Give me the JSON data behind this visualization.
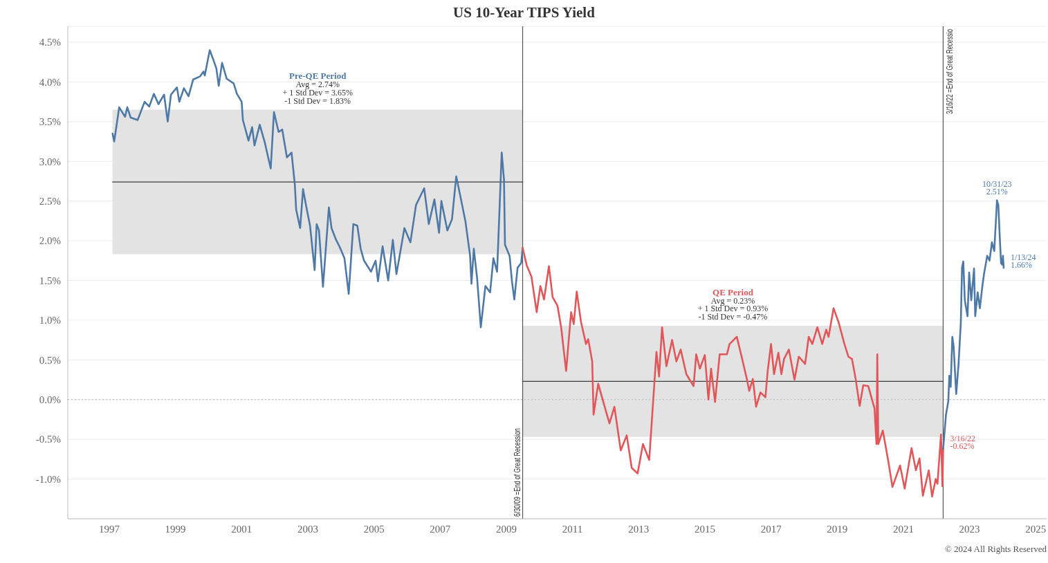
{
  "chart_data": {
    "type": "line",
    "title": "US 10-Year TIPS Yield",
    "xlim": [
      "1995-10-01",
      "2025-05-01"
    ],
    "xticks": [
      "1997",
      "1999",
      "2001",
      "2003",
      "2005",
      "2007",
      "2009",
      "2011",
      "2013",
      "2015",
      "2017",
      "2019",
      "2021",
      "2023",
      "2025"
    ],
    "ylim": [
      -1.5,
      4.7
    ],
    "yticks": [
      {
        "value": -1.0,
        "label": "-1.0%"
      },
      {
        "value": -0.5,
        "label": "-0.5%"
      },
      {
        "value": 0,
        "label": "0.0%"
      },
      {
        "value": 0.5,
        "label": "0.5%"
      },
      {
        "value": 1.0,
        "label": "1.0%"
      },
      {
        "value": 1.5,
        "label": "1.5%"
      },
      {
        "value": 2.0,
        "label": "2.0%"
      },
      {
        "value": 2.5,
        "label": "2.5%"
      },
      {
        "value": 3.0,
        "label": "3.0%"
      },
      {
        "value": 3.5,
        "label": "3.5%"
      },
      {
        "value": 4.0,
        "label": "4.0%"
      },
      {
        "value": 4.5,
        "label": "4.5%"
      }
    ],
    "grid": "y",
    "marker": "none",
    "series": [
      {
        "color": "#3d3d3d",
        "x": [
          "1997-02-06",
          "2009-06-30"
        ],
        "values": [
          2.74,
          2.74
        ],
        "lower": [
          1.83,
          1.83
        ],
        "upper": [
          3.65,
          3.65
        ]
      },
      {
        "color": "#3d3d3d",
        "x": [
          "2009-06-30",
          "2022-03-16"
        ],
        "values": [
          0.23,
          0.23
        ],
        "lower": [
          -0.47,
          -0.47
        ],
        "upper": [
          0.93,
          0.93
        ]
      },
      {
        "color": "#4e79a7",
        "x": [
          "1997-02-06",
          "1997-02-24",
          "1997-04-09",
          "1997-04-20",
          "1997-06-24",
          "1997-07-19",
          "1997-08-25",
          "1997-11-10",
          "1998-01-26",
          "1998-03-18",
          "1998-05-08",
          "1998-06-28",
          "1998-08-29",
          "1998-10-08",
          "1998-11-13",
          "1999-01-18",
          "1999-02-13",
          "1999-04-05",
          "1999-05-26",
          "1999-07-16",
          "1999-10-01",
          "1999-11-07",
          "1999-11-21",
          "2000-01-15",
          "2000-02-17",
          "2000-03-28",
          "2000-04-23",
          "2000-05-30",
          "2000-07-20",
          "2000-10-05",
          "2000-11-10",
          "2001-01-01",
          "2001-01-15",
          "2001-03-18",
          "2001-04-27",
          "2001-05-23",
          "2001-07-20",
          "2001-09-13",
          "2001-11-18",
          "2001-12-24",
          "2002-02-13",
          "2002-03-25",
          "2002-05-16",
          "2002-07-06",
          "2002-08-11",
          "2002-08-26",
          "2002-10-09",
          "2002-11-10",
          "2002-12-17",
          "2003-01-26",
          "2003-03-18",
          "2003-04-09",
          "2003-05-05",
          "2003-06-18",
          "2003-08-22",
          "2003-09-20",
          "2003-11-10",
          "2003-12-20",
          "2004-02-10",
          "2004-03-28",
          "2004-05-18",
          "2004-07-01",
          "2004-08-07",
          "2004-09-13",
          "2004-11-29",
          "2005-01-19",
          "2005-02-14",
          "2005-04-06",
          "2005-06-07",
          "2005-07-28",
          "2005-09-06",
          "2005-12-03",
          "2006-02-07",
          "2006-04-10",
          "2006-07-09",
          "2006-08-29",
          "2006-10-30",
          "2006-12-20",
          "2007-01-15",
          "2007-03-22",
          "2007-05-12",
          "2007-06-28",
          "2007-08-18",
          "2007-10-08",
          "2007-11-28",
          "2007-12-13",
          "2008-01-08",
          "2008-02-14",
          "2008-03-25",
          "2008-05-15",
          "2008-07-06",
          "2008-08-11",
          "2008-09-21",
          "2008-11-11",
          "2008-12-06",
          "2008-12-17",
          "2009-02-06",
          "2009-03-04",
          "2009-03-30",
          "2009-05-05",
          "2009-06-14",
          "2009-06-30"
        ],
        "values": [
          3.35,
          3.25,
          3.59,
          3.68,
          3.56,
          3.68,
          3.55,
          3.52,
          3.75,
          3.69,
          3.85,
          3.72,
          3.84,
          3.5,
          3.84,
          3.93,
          3.75,
          3.92,
          3.82,
          4.03,
          4.07,
          4.13,
          4.08,
          4.4,
          4.3,
          4.17,
          3.95,
          4.24,
          4.04,
          3.98,
          3.85,
          3.75,
          3.52,
          3.26,
          3.43,
          3.2,
          3.46,
          3.24,
          2.91,
          3.62,
          3.37,
          3.4,
          3.05,
          3.11,
          2.71,
          2.39,
          2.16,
          2.65,
          2.42,
          2.19,
          1.63,
          2.21,
          2.13,
          1.42,
          2.42,
          2.16,
          2.01,
          1.92,
          1.78,
          1.33,
          2.21,
          2.19,
          1.9,
          1.75,
          1.61,
          1.75,
          1.49,
          1.93,
          1.5,
          2.01,
          1.58,
          2.16,
          1.98,
          2.45,
          2.66,
          2.21,
          2.52,
          2.1,
          2.5,
          2.13,
          2.27,
          2.81,
          2.53,
          2.24,
          1.81,
          1.46,
          1.9,
          1.52,
          0.91,
          1.43,
          1.35,
          1.78,
          1.61,
          3.11,
          2.77,
          1.95,
          1.81,
          1.49,
          1.26,
          1.66,
          1.72,
          1.91
        ]
      },
      {
        "color": "#e15759",
        "x": [
          "2009-06-30",
          "2009-08-14",
          "2009-10-05",
          "2009-12-02",
          "2010-01-12",
          "2010-02-21",
          "2010-04-16",
          "2010-05-27",
          "2010-07-20",
          "2010-08-29",
          "2010-10-23",
          "2010-12-17",
          "2011-01-15",
          "2011-02-17",
          "2011-04-05",
          "2011-05-30",
          "2011-06-24",
          "2011-08-07",
          "2011-08-22",
          "2011-10-12",
          "2011-12-20",
          "2012-02-13",
          "2012-04-08",
          "2012-06-17",
          "2012-08-22",
          "2012-10-16",
          "2012-12-20",
          "2013-02-17",
          "2013-04-27",
          "2013-06-21",
          "2013-07-16",
          "2013-08-14",
          "2013-09-16",
          "2013-11-03",
          "2014-01-05",
          "2014-02-21",
          "2014-04-10",
          "2014-06-11",
          "2014-08-30",
          "2014-09-28",
          "2014-11-07",
          "2015-01-01",
          "2015-02-10",
          "2015-03-11",
          "2015-04-24",
          "2015-06-14",
          "2015-09-02",
          "2015-10-01",
          "2015-12-20",
          "2016-01-30",
          "2016-04-09",
          "2016-05-05",
          "2016-06-14",
          "2016-07-20",
          "2016-09-06",
          "2016-10-31",
          "2016-11-25",
          "2017-01-01",
          "2017-02-03",
          "2017-03-23",
          "2017-04-25",
          "2017-05-24",
          "2017-07-17",
          "2017-09-17",
          "2017-11-03",
          "2018-01-12",
          "2018-02-21",
          "2018-04-02",
          "2018-05-27",
          "2018-07-20",
          "2018-09-02",
          "2018-09-28",
          "2018-11-22",
          "2019-01-15",
          "2019-03-22",
          "2019-05-05",
          "2019-06-14",
          "2019-07-24",
          "2019-09-06",
          "2019-10-16",
          "2019-12-10",
          "2020-02-17",
          "2020-03-10",
          "2020-03-19",
          "2020-03-30",
          "2020-05-19",
          "2020-07-16",
          "2020-09-02",
          "2020-11-25",
          "2021-01-15",
          "2021-04-01",
          "2021-05-19",
          "2021-06-28",
          "2021-08-04",
          "2021-10-08",
          "2021-11-14",
          "2021-12-24",
          "2022-01-12",
          "2022-02-20",
          "2022-03-08",
          "2022-03-16"
        ],
        "values": [
          1.91,
          1.69,
          1.55,
          1.1,
          1.43,
          1.26,
          1.68,
          1.29,
          1.18,
          0.91,
          0.36,
          1.1,
          0.95,
          1.36,
          0.98,
          0.7,
          0.76,
          0.48,
          -0.19,
          0.2,
          -0.08,
          -0.3,
          -0.09,
          -0.64,
          -0.45,
          -0.86,
          -0.93,
          -0.56,
          -0.76,
          0.17,
          0.6,
          0.29,
          0.91,
          0.42,
          0.75,
          0.48,
          0.63,
          0.32,
          0.17,
          0.57,
          0.39,
          0.56,
          0.0,
          0.39,
          -0.03,
          0.57,
          0.57,
          0.7,
          0.79,
          0.6,
          0.26,
          0.11,
          0.26,
          -0.09,
          0.09,
          0.03,
          0.36,
          0.7,
          0.32,
          0.59,
          0.32,
          0.51,
          0.63,
          0.25,
          0.54,
          0.45,
          0.79,
          0.7,
          0.91,
          0.7,
          0.88,
          0.79,
          1.15,
          0.98,
          0.7,
          0.54,
          0.51,
          0.26,
          -0.08,
          0.18,
          0.17,
          -0.11,
          -0.56,
          0.57,
          -0.56,
          -0.39,
          -0.76,
          -1.1,
          -0.83,
          -1.12,
          -0.61,
          -0.89,
          -0.74,
          -1.21,
          -0.89,
          -1.22,
          -1.0,
          -1.06,
          -0.44,
          -1.09,
          -0.62
        ],
        "value_labels": [
          null,
          null,
          null,
          null,
          null,
          null,
          null,
          null,
          null,
          null,
          null,
          null,
          null,
          null,
          null,
          null,
          null,
          null,
          null,
          null,
          null,
          null,
          null,
          null,
          null,
          null,
          null,
          null,
          null,
          null,
          null,
          null,
          null,
          null,
          null,
          null,
          null,
          null,
          null,
          null,
          null,
          null,
          null,
          null,
          null,
          null,
          null,
          null,
          null,
          null,
          null,
          null,
          null,
          null,
          null,
          null,
          null,
          null,
          null,
          null,
          null,
          null,
          null,
          null,
          null,
          null,
          null,
          null,
          null,
          null,
          null,
          null,
          null,
          null,
          null,
          null,
          null,
          null,
          null,
          null,
          null,
          null,
          null,
          null,
          null,
          null,
          null,
          null,
          null,
          null,
          null,
          null,
          null,
          null,
          null,
          null,
          null,
          null,
          null,
          null,
          "3/16/22\n-0.62%"
        ]
      },
      {
        "color": "#4e79a7",
        "x": [
          "2022-03-16",
          "2022-04-16",
          "2022-05-12",
          "2022-05-23",
          "2022-06-07",
          "2022-06-25",
          "2022-07-09",
          "2022-08-07",
          "2022-09-02",
          "2022-09-27",
          "2022-10-10",
          "2022-10-24",
          "2022-11-10",
          "2022-12-10",
          "2022-12-28",
          "2023-01-20",
          "2023-02-20",
          "2023-03-05",
          "2023-04-01",
          "2023-04-25",
          "2023-05-25",
          "2023-06-10",
          "2023-07-15",
          "2023-08-10",
          "2023-09-05",
          "2023-10-01",
          "2023-10-20",
          "2023-10-31",
          "2023-11-15",
          "2023-12-01",
          "2023-12-15",
          "2023-12-27",
          "2024-01-05",
          "2024-01-13"
        ],
        "values": [
          -0.62,
          -0.19,
          -0.02,
          0.3,
          0.16,
          0.79,
          0.68,
          0.07,
          0.45,
          0.97,
          1.66,
          1.74,
          1.25,
          1.05,
          1.6,
          1.25,
          1.65,
          1.05,
          1.35,
          1.15,
          1.45,
          1.58,
          1.81,
          1.75,
          1.98,
          1.87,
          2.27,
          2.51,
          2.45,
          2.04,
          1.72,
          1.7,
          1.81,
          1.66
        ],
        "value_labels": [
          null,
          null,
          null,
          null,
          null,
          null,
          null,
          null,
          null,
          null,
          null,
          null,
          null,
          null,
          null,
          null,
          null,
          null,
          null,
          null,
          null,
          null,
          null,
          null,
          null,
          null,
          null,
          "10/31/23\n2.51%",
          null,
          null,
          null,
          null,
          null,
          "1/13/24\n1.66%"
        ]
      }
    ],
    "ref_lines": [
      {
        "axis": "y",
        "value": 0,
        "color": "#b5b5b5",
        "line_style": "dotted"
      },
      {
        "axis": "x",
        "value": "2009-06-30",
        "label": "6/30/09 =End of Great Recession",
        "color": "#555555"
      },
      {
        "axis": "x",
        "value": "2022-03-16",
        "label": "3/16/22 =End of Great Recessio",
        "color": "#555555"
      }
    ],
    "annotations": [
      {
        "text": "Pre-QE Period\nAvg = 2.74%\n+ 1 Std Dev = 3.65%\n-1 Std Dev = 1.83%",
        "x": "2003-04-20",
        "y": 3.65
      },
      {
        "text": "QE Period\nAvg = 0.23%\n+ 1 Std Dev = 0.93%\n-1 Std Dev = -0.47%",
        "x": "2015-11-07",
        "y": 0.93
      },
      "© 2024 All Rights Reserved"
    ]
  }
}
